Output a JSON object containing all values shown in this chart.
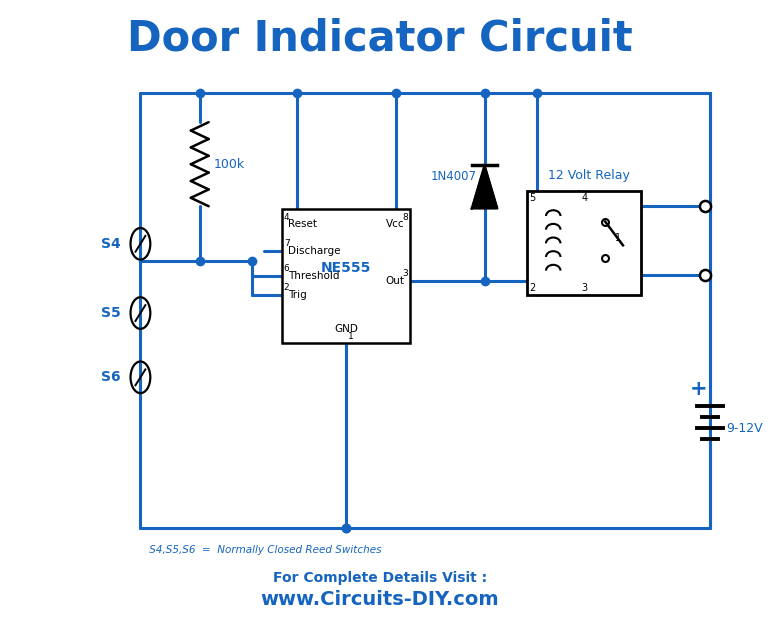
{
  "title": "Door Indicator Circuit",
  "title_color": "#1565C0",
  "title_fontsize": 30,
  "title_fontweight": "bold",
  "wire_color": "#1565C0",
  "wire_lw": 2.2,
  "component_color": "#000000",
  "label_color": "#1565C0",
  "ne555_label_color": "#1565C0",
  "bg_color": "#ffffff",
  "footer_text1": "For Complete Details Visit :",
  "footer_text2": "www.Circuits-DIY.com",
  "footer_color": "#1565C0",
  "note_text": " S4,S5,S6  =  Normally Closed Reed Switches",
  "note_color": "#1565C0"
}
